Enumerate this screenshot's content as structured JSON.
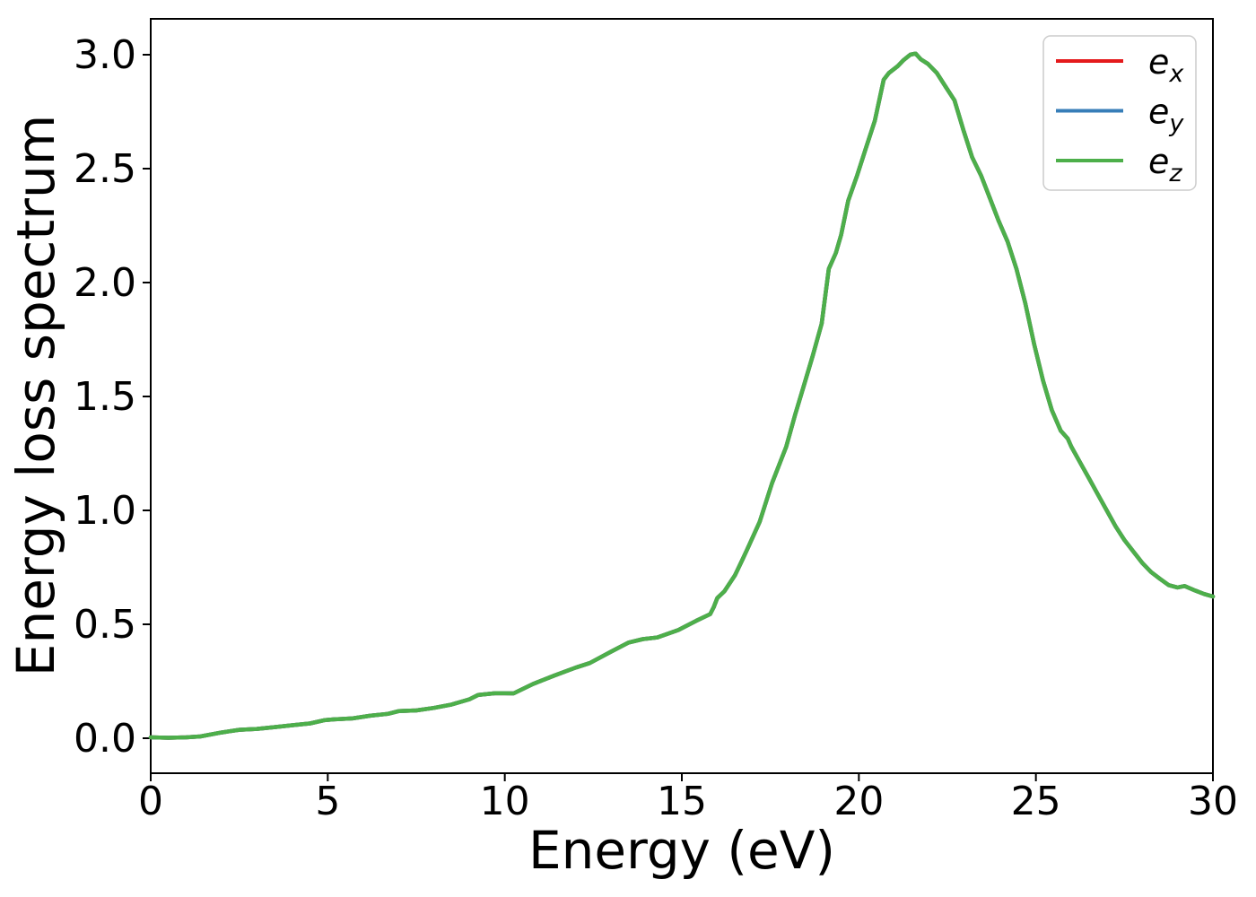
{
  "figure": {
    "background_color": "#ffffff",
    "spine_color": "#000000",
    "legend_border_color": "#cccccc",
    "legend_background": "#ffffff"
  },
  "chart_data": {
    "type": "line",
    "title": "",
    "xlabel": "Energy (eV)",
    "ylabel": "Energy loss spectrum",
    "xlim": [
      0,
      30
    ],
    "ylim": [
      -0.15,
      3.16
    ],
    "grid": false,
    "legend_position": "upper right",
    "xticks": [
      0,
      5,
      10,
      15,
      20,
      25,
      30
    ],
    "yticks": [
      0.0,
      0.5,
      1.0,
      1.5,
      2.0,
      2.5,
      3.0
    ],
    "xtick_labels": [
      "0",
      "5",
      "10",
      "15",
      "20",
      "25",
      "30"
    ],
    "ytick_labels": [
      "0.0",
      "0.5",
      "1.0",
      "1.5",
      "2.0",
      "2.5",
      "3.0"
    ],
    "x": [
      0,
      0.5,
      1.0,
      1.4,
      2.0,
      2.5,
      3.0,
      3.5,
      4.0,
      4.5,
      4.9,
      5.2,
      5.7,
      6.2,
      6.7,
      7.0,
      7.5,
      8.0,
      8.5,
      9.0,
      9.25,
      9.75,
      10.25,
      10.8,
      11.4,
      12.0,
      12.4,
      13.0,
      13.5,
      13.9,
      14.3,
      14.9,
      15.4,
      15.8,
      15.9,
      16.0,
      16.2,
      16.5,
      16.7,
      16.85,
      17.2,
      17.55,
      17.95,
      18.2,
      18.45,
      18.7,
      18.95,
      19.15,
      19.35,
      19.5,
      19.7,
      19.95,
      20.2,
      20.45,
      20.7,
      20.85,
      21.1,
      21.25,
      21.45,
      21.6,
      21.75,
      21.95,
      22.2,
      22.45,
      22.7,
      22.95,
      23.2,
      23.45,
      23.7,
      23.95,
      24.2,
      24.45,
      24.7,
      24.95,
      25.2,
      25.45,
      25.7,
      25.9,
      26.0,
      26.25,
      26.5,
      26.75,
      27.0,
      27.25,
      27.5,
      27.75,
      28.0,
      28.25,
      28.5,
      28.75,
      29.0,
      29.2,
      29.5,
      29.75,
      30.0
    ],
    "y_shared": [
      0.004,
      0.002,
      0.004,
      0.008,
      0.025,
      0.037,
      0.041,
      0.049,
      0.057,
      0.065,
      0.079,
      0.083,
      0.087,
      0.099,
      0.107,
      0.119,
      0.122,
      0.133,
      0.148,
      0.171,
      0.19,
      0.198,
      0.197,
      0.238,
      0.275,
      0.31,
      0.33,
      0.38,
      0.42,
      0.435,
      0.442,
      0.475,
      0.515,
      0.545,
      0.575,
      0.615,
      0.645,
      0.715,
      0.78,
      0.83,
      0.95,
      1.12,
      1.28,
      1.42,
      1.55,
      1.68,
      1.82,
      2.06,
      2.13,
      2.21,
      2.36,
      2.47,
      2.59,
      2.71,
      2.89,
      2.92,
      2.95,
      2.975,
      3.0,
      3.005,
      2.98,
      2.96,
      2.92,
      2.86,
      2.8,
      2.67,
      2.55,
      2.47,
      2.37,
      2.27,
      2.18,
      2.06,
      1.91,
      1.73,
      1.57,
      1.44,
      1.35,
      1.315,
      1.28,
      1.21,
      1.14,
      1.07,
      1.0,
      0.93,
      0.87,
      0.82,
      0.77,
      0.73,
      0.7,
      0.672,
      0.662,
      0.668,
      0.648,
      0.633,
      0.622
    ],
    "series": [
      {
        "name": "e_x",
        "label_main": "e",
        "label_sub": "x",
        "color": "#e41a1c",
        "values_same_as": "y_shared"
      },
      {
        "name": "e_y",
        "label_main": "e",
        "label_sub": "y",
        "color": "#377eb8",
        "values_same_as": "y_shared"
      },
      {
        "name": "e_z",
        "label_main": "e",
        "label_sub": "z",
        "color": "#4daf4a",
        "values_same_as": "y_shared"
      }
    ],
    "note": "All three series overlap exactly; green e_z is drawn on top"
  }
}
